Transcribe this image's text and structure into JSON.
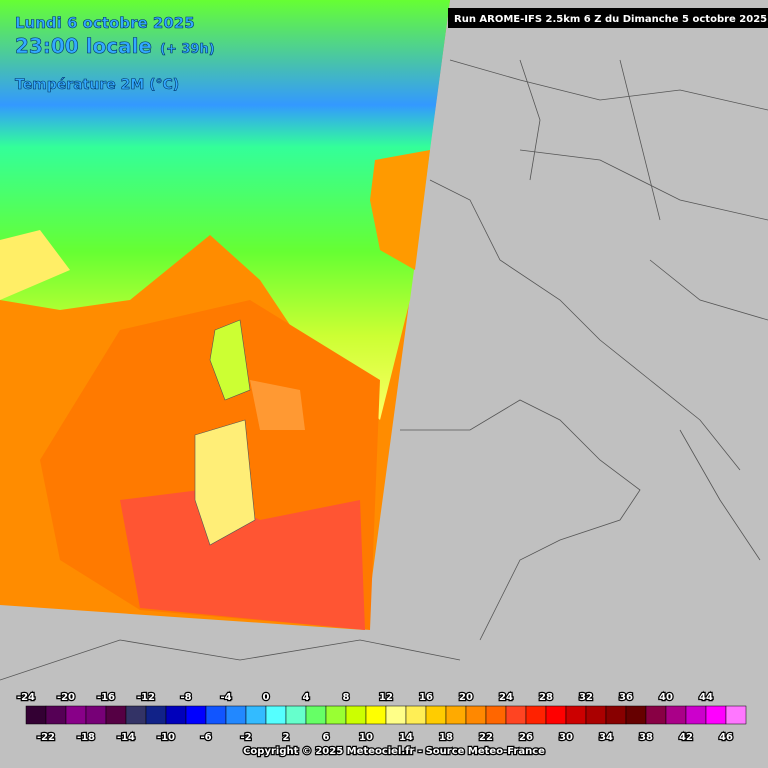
{
  "header": {
    "date": "Lundi 6 octobre 2025",
    "time": "23:00 locale",
    "lead": "(+ 39h)",
    "variable": "Température 2M (°C)",
    "run": "Run AROME-IFS 2.5km 6 Z du Dimanche 5 octobre 2025"
  },
  "legend": {
    "top_labels": [
      "-24",
      "-20",
      "-16",
      "-12",
      "-8",
      "-4",
      "0",
      "4",
      "8",
      "12",
      "16",
      "20",
      "24",
      "28",
      "32",
      "36",
      "40",
      "44"
    ],
    "bottom_labels": [
      "-22",
      "-18",
      "-14",
      "-10",
      "-6",
      "-2",
      "2",
      "6",
      "10",
      "14",
      "18",
      "22",
      "26",
      "30",
      "34",
      "38",
      "42",
      "46"
    ],
    "colors": [
      "#330033",
      "#550055",
      "#880088",
      "#770077",
      "#550044",
      "#333366",
      "#112288",
      "#0000bb",
      "#0000ff",
      "#1155ff",
      "#2288ff",
      "#33bbff",
      "#55ffff",
      "#66ffcc",
      "#66ff66",
      "#99ff33",
      "#ccff00",
      "#ffff00",
      "#ffff88",
      "#ffee55",
      "#ffcc00",
      "#ffaa00",
      "#ff8800",
      "#ff6600",
      "#ff4422",
      "#ff2200",
      "#ff0000",
      "#cc0000",
      "#aa0000",
      "#880000",
      "#660000",
      "#880044",
      "#aa0088",
      "#cc00cc",
      "#ff00ff",
      "#ff77ff"
    ]
  },
  "footer": "Copyright © 2025 Meteociel.fr - Source Meteo-France"
}
